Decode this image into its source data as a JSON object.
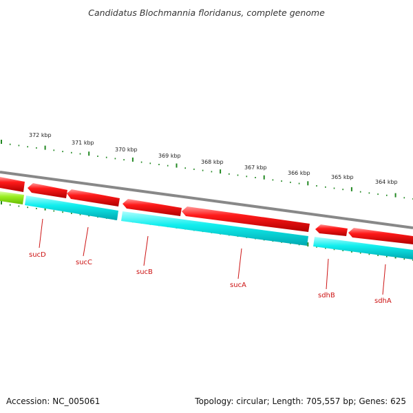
{
  "title": "Candidatus Blochmannia floridanus, complete genome",
  "footer": {
    "accession": "Accession: NC_005061",
    "stats": "Topology: circular; Length: 705,557 bp; Genes: 625"
  },
  "axis": {
    "unit": "kbp",
    "ticks": [
      {
        "label": "372 kbp"
      },
      {
        "label": "371 kbp"
      },
      {
        "label": "370 kbp"
      },
      {
        "label": "369 kbp"
      },
      {
        "label": "368 kbp"
      },
      {
        "label": "367 kbp"
      },
      {
        "label": "366 kbp"
      },
      {
        "label": "365 kbp"
      },
      {
        "label": "364 kbp"
      }
    ]
  },
  "genes": [
    {
      "name": "sucD"
    },
    {
      "name": "sucC"
    },
    {
      "name": "sucB"
    },
    {
      "name": "sucA"
    },
    {
      "name": "sdhB"
    },
    {
      "name": "sdhA"
    }
  ],
  "colors": {
    "backbone": "#888888",
    "cds_forward": "#ee0000",
    "cds_track": "#00e5ee",
    "other_feature": "#99ee22",
    "ticks": "#228822",
    "gene_label": "#cc1111"
  }
}
